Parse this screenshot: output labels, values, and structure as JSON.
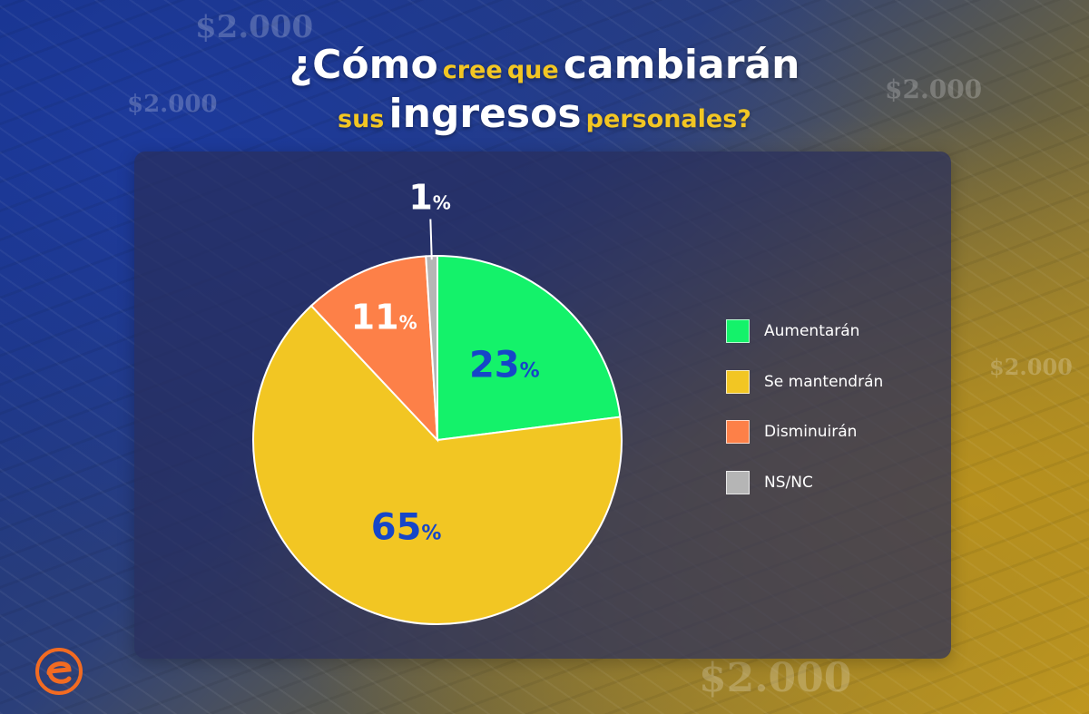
{
  "title": {
    "line1": [
      {
        "text": "¿Cómo",
        "style": "big"
      },
      {
        "text": "cree",
        "style": "small"
      },
      {
        "text": "que",
        "style": "small"
      },
      {
        "text": "cambiarán",
        "style": "big"
      }
    ],
    "line2": [
      {
        "text": "sus",
        "style": "small"
      },
      {
        "text": "ingresos",
        "style": "big"
      },
      {
        "text": "personales?",
        "style": "small"
      }
    ]
  },
  "background_notes": [
    "$2.000",
    "$2.000",
    "$2.000",
    "$2.000",
    "$2.000"
  ],
  "chart_data": {
    "type": "pie",
    "categories": [
      "Aumentarán",
      "Se mantendrán",
      "Disminuirán",
      "NS/NC"
    ],
    "values": [
      23,
      65,
      11,
      1
    ],
    "unit": "%",
    "colors": [
      "#14f26a",
      "#f2c623",
      "#fd8048",
      "#b5b5b5"
    ],
    "label_color": "#1646c8",
    "legend": "right"
  },
  "logo": {
    "icon": "e-logo-icon",
    "color": "#f26b22"
  }
}
